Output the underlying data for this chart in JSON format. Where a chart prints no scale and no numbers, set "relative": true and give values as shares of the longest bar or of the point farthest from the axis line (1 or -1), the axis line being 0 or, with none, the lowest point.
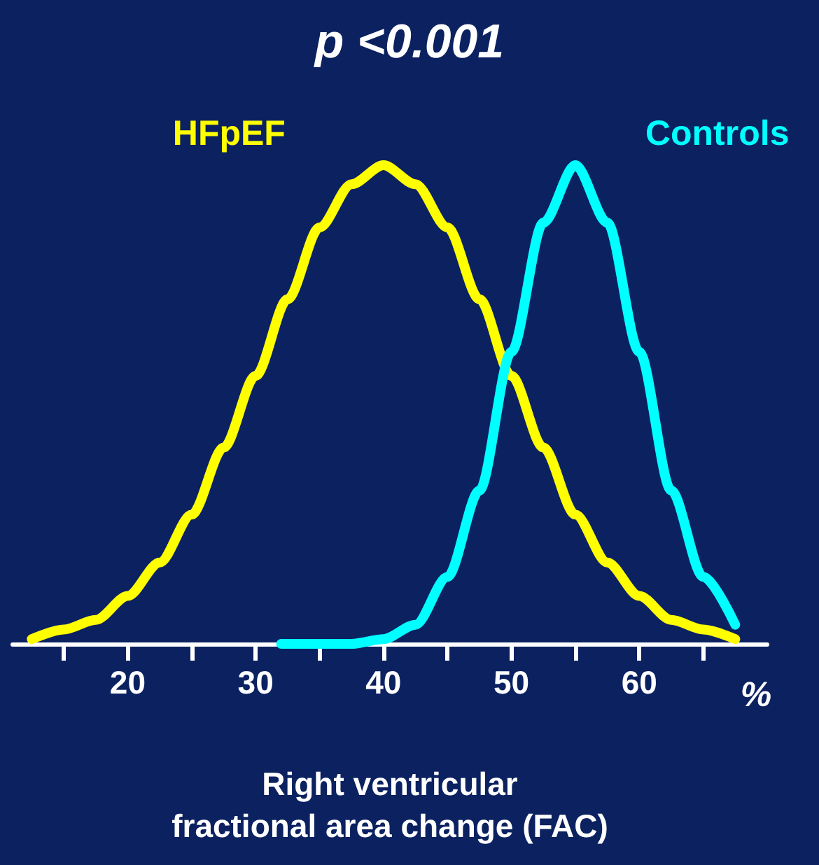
{
  "chart_data": {
    "type": "line",
    "title": "p <0.001",
    "xlabel": "Right ventricular\nfractional area change (FAC)",
    "annotations": [
      "%"
    ],
    "relative": true,
    "legend": false,
    "grid": false,
    "marker": "none",
    "xlim": [
      11,
      70
    ],
    "xticks": [
      {
        "value": 15,
        "label": null
      },
      20,
      {
        "value": 25,
        "label": null
      },
      30,
      {
        "value": 35,
        "label": null
      },
      40,
      {
        "value": 45,
        "label": null
      },
      50,
      {
        "value": 55,
        "label": null
      },
      60,
      {
        "value": 65,
        "label": null
      }
    ],
    "series": [
      {
        "name": "HFpEF",
        "color": "#ffff00",
        "x": [
          12.5,
          15,
          17.5,
          20,
          22.5,
          25,
          27.5,
          30,
          32.5,
          35,
          37.5,
          40,
          42.5,
          45,
          47.5,
          50,
          52.5,
          55,
          57.5,
          60,
          62.5,
          65,
          67.5
        ],
        "values": [
          0.01,
          0.03,
          0.05,
          0.1,
          0.17,
          0.27,
          0.41,
          0.56,
          0.72,
          0.87,
          0.96,
          1,
          0.96,
          0.87,
          0.72,
          0.56,
          0.41,
          0.27,
          0.17,
          0.1,
          0.05,
          0.03,
          0.01
        ]
      },
      {
        "name": "Controls",
        "color": "#00ffff",
        "x": [
          32,
          35,
          37.5,
          40,
          42.5,
          45,
          47.5,
          50,
          52.5,
          55,
          57.5,
          60,
          62.5,
          65,
          67.5
        ],
        "values": [
          0,
          0,
          0,
          0.01,
          0.04,
          0.14,
          0.32,
          0.61,
          0.88,
          1,
          0.88,
          0.61,
          0.32,
          0.14,
          0.04
        ]
      }
    ]
  }
}
